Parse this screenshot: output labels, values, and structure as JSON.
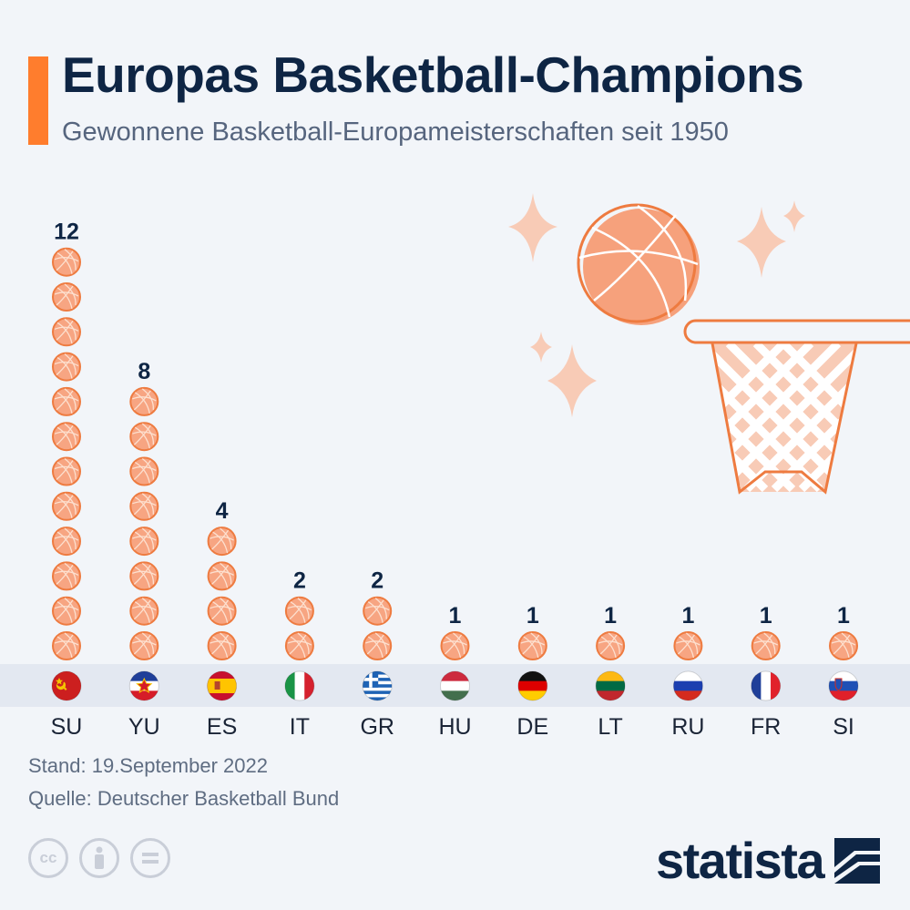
{
  "header": {
    "title": "Europas Basketball-Champions",
    "subtitle": "Gewonnene Basketball-Europameisterschaften seit 1950"
  },
  "chart_data": {
    "type": "bar",
    "categories": [
      "SU",
      "YU",
      "ES",
      "IT",
      "GR",
      "HU",
      "DE",
      "LT",
      "RU",
      "FR",
      "SI"
    ],
    "values": [
      12,
      8,
      4,
      2,
      2,
      1,
      1,
      1,
      1,
      1,
      1
    ],
    "title": "Europas Basketball-Champions",
    "subtitle": "Gewonnene Basketball-Europameisterschaften seit 1950",
    "xlabel": "",
    "ylabel": "",
    "grid": false,
    "legend": "none",
    "mark": "basketball-icon stack"
  },
  "flags": {
    "SU": "soviet-flag-icon",
    "YU": "yugoslavia-flag-icon",
    "ES": "spain-flag-icon",
    "IT": "italy-flag-icon",
    "GR": "greece-flag-icon",
    "HU": "hungary-flag-icon",
    "DE": "germany-flag-icon",
    "LT": "lithuania-flag-icon",
    "RU": "russia-flag-icon",
    "FR": "france-flag-icon",
    "SI": "slovenia-flag-icon"
  },
  "colors": {
    "accent": "#ff7d2d",
    "ball_fill": "#f7a582",
    "ball_line": "#ee7b40",
    "title": "#0e2544",
    "band": "#e3e8f1"
  },
  "footer": {
    "stand": "Stand: 19.September 2022",
    "source": "Quelle: Deutscher Basketball Bund",
    "license_icons": [
      "cc-icon",
      "by-icon",
      "nd-icon"
    ],
    "brand": "statista"
  }
}
